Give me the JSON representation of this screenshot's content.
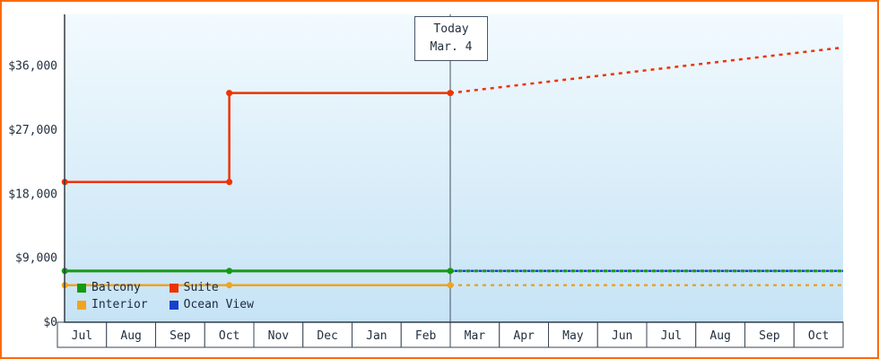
{
  "window": {
    "border_color": "#ff6a00"
  },
  "today_box": {
    "line1": "Today",
    "line2": "Mar. 4"
  },
  "legend": {
    "items": [
      {
        "label": "Balcony",
        "color": "#159a15"
      },
      {
        "label": "Suite",
        "color": "#ee3300"
      },
      {
        "label": "Interior",
        "color": "#f0a41e"
      },
      {
        "label": "Ocean View",
        "color": "#1442cc"
      }
    ]
  },
  "chart_data": {
    "type": "line",
    "title": "",
    "xlabel": "",
    "ylabel": "",
    "ylim": [
      0,
      40000
    ],
    "grid": false,
    "legend_position": "bottom-left-inside",
    "x_categories": [
      "Jul",
      "Aug",
      "Sep",
      "Oct",
      "Nov",
      "Dec",
      "Jan",
      "Feb",
      "Mar",
      "Apr",
      "May",
      "Jun",
      "Jul",
      "Aug",
      "Sep",
      "Oct"
    ],
    "y_ticks": [
      {
        "label": "$0",
        "value": 0
      },
      {
        "label": "$9,000",
        "value": 9000
      },
      {
        "label": "$18,000",
        "value": 18000
      },
      {
        "label": "$27,000",
        "value": 27000
      },
      {
        "label": "$36,000",
        "value": 36000
      }
    ],
    "today": {
      "x": 8,
      "label": "Today",
      "date": "Mar. 4"
    },
    "series": [
      {
        "name": "Ocean View",
        "color": "#1442cc",
        "width": 2.5,
        "dash_offset": 4.5,
        "history": [
          [
            0.15,
            7200
          ],
          [
            3.5,
            7200
          ],
          [
            8,
            7200
          ]
        ],
        "forecast": [
          [
            8,
            7200
          ],
          [
            16,
            7200
          ]
        ],
        "markers": []
      },
      {
        "name": "Balcony",
        "color": "#159a15",
        "width": 3,
        "history": [
          [
            0.15,
            7200
          ],
          [
            3.5,
            7200
          ],
          [
            8,
            7200
          ]
        ],
        "forecast": [
          [
            8,
            7200
          ],
          [
            16,
            7200
          ]
        ],
        "markers": [
          [
            0.15,
            7200
          ],
          [
            3.5,
            7200
          ],
          [
            8,
            7200
          ]
        ]
      },
      {
        "name": "Interior",
        "color": "#f0a41e",
        "width": 2.5,
        "history": [
          [
            0.15,
            5200
          ],
          [
            3.5,
            5200
          ],
          [
            8,
            5200
          ]
        ],
        "forecast": [
          [
            8,
            5200
          ],
          [
            16,
            5200
          ]
        ],
        "markers": [
          [
            0.15,
            5200
          ],
          [
            3.5,
            5200
          ],
          [
            8,
            5200
          ]
        ]
      },
      {
        "name": "Suite",
        "color": "#ee3300",
        "width": 2.5,
        "history": [
          [
            0.15,
            19700
          ],
          [
            3.5,
            19700
          ],
          [
            3.5,
            32200
          ],
          [
            8,
            32200
          ]
        ],
        "forecast": [
          [
            8,
            32200
          ],
          [
            16,
            38600
          ]
        ],
        "markers": [
          [
            0.15,
            19700
          ],
          [
            3.5,
            19700
          ],
          [
            3.5,
            32200
          ],
          [
            8,
            32200
          ]
        ]
      }
    ]
  }
}
